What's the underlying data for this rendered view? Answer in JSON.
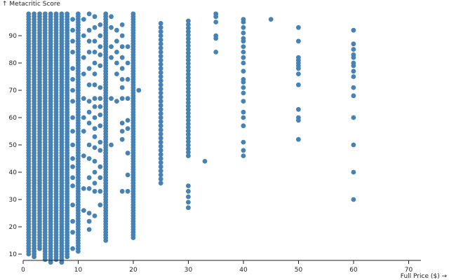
{
  "chart_data": {
    "type": "scatter",
    "title": "",
    "xlabel": "Full Price ($) →",
    "ylabel": "↑ Metacritic Score",
    "xlim": [
      0,
      77
    ],
    "ylim": [
      6,
      100
    ],
    "x_ticks": [
      "0",
      "10",
      "20",
      "30",
      "40",
      "50",
      "60",
      "70"
    ],
    "y_ticks": [
      "10",
      "20",
      "30",
      "40",
      "50",
      "60",
      "70",
      "80",
      "90"
    ],
    "point_color": "#4682b4",
    "grid": false,
    "columns": [
      {
        "x": 0.99,
        "from": 10,
        "to": 98,
        "step": 1
      },
      {
        "x": 1.99,
        "from": 9,
        "to": 98,
        "step": 1
      },
      {
        "x": 2.99,
        "from": 12,
        "to": 98,
        "step": 1
      },
      {
        "x": 3.99,
        "from": 8,
        "to": 98,
        "step": 1
      },
      {
        "x": 4.99,
        "from": 7,
        "to": 98,
        "step": 1
      },
      {
        "x": 5.99,
        "from": 8,
        "to": 98,
        "step": 1
      },
      {
        "x": 6.99,
        "from": 7,
        "to": 98,
        "step": 1
      },
      {
        "x": 7.99,
        "from": 9,
        "to": 98,
        "step": 1
      },
      {
        "x": 9.99,
        "from": 11,
        "to": 98,
        "step": 1
      },
      {
        "x": 14.99,
        "from": 15,
        "to": 98,
        "step": 1
      },
      {
        "x": 19.99,
        "from": 16,
        "to": 98,
        "step": 1
      },
      {
        "x": 24.99,
        "from": 36,
        "to": 95,
        "step": 1.5
      },
      {
        "x": 29.99,
        "from": 46,
        "to": 96,
        "step": 1.3
      }
    ],
    "points": [
      {
        "x": 8.99,
        "y": 12
      },
      {
        "x": 8.99,
        "y": 18
      },
      {
        "x": 8.99,
        "y": 22
      },
      {
        "x": 8.99,
        "y": 28
      },
      {
        "x": 8.99,
        "y": 35
      },
      {
        "x": 8.99,
        "y": 38
      },
      {
        "x": 8.99,
        "y": 42
      },
      {
        "x": 8.99,
        "y": 45
      },
      {
        "x": 8.99,
        "y": 50
      },
      {
        "x": 8.99,
        "y": 55
      },
      {
        "x": 8.99,
        "y": 60
      },
      {
        "x": 8.99,
        "y": 66
      },
      {
        "x": 8.99,
        "y": 70
      },
      {
        "x": 8.99,
        "y": 74
      },
      {
        "x": 8.99,
        "y": 78
      },
      {
        "x": 8.99,
        "y": 84
      },
      {
        "x": 8.99,
        "y": 88
      },
      {
        "x": 8.99,
        "y": 92
      },
      {
        "x": 8.99,
        "y": 96
      },
      {
        "x": 10.99,
        "y": 26
      },
      {
        "x": 10.99,
        "y": 34
      },
      {
        "x": 10.99,
        "y": 46
      },
      {
        "x": 10.99,
        "y": 55
      },
      {
        "x": 10.99,
        "y": 60
      },
      {
        "x": 10.99,
        "y": 67
      },
      {
        "x": 10.99,
        "y": 76
      },
      {
        "x": 10.99,
        "y": 82
      },
      {
        "x": 10.99,
        "y": 90
      },
      {
        "x": 10.99,
        "y": 96
      },
      {
        "x": 11.99,
        "y": 19
      },
      {
        "x": 11.99,
        "y": 22
      },
      {
        "x": 11.99,
        "y": 25
      },
      {
        "x": 11.99,
        "y": 34
      },
      {
        "x": 11.99,
        "y": 38
      },
      {
        "x": 11.99,
        "y": 45
      },
      {
        "x": 11.99,
        "y": 50
      },
      {
        "x": 11.99,
        "y": 58
      },
      {
        "x": 11.99,
        "y": 62
      },
      {
        "x": 11.99,
        "y": 66
      },
      {
        "x": 11.99,
        "y": 72
      },
      {
        "x": 11.99,
        "y": 78
      },
      {
        "x": 11.99,
        "y": 84
      },
      {
        "x": 11.99,
        "y": 88
      },
      {
        "x": 11.99,
        "y": 92
      },
      {
        "x": 11.99,
        "y": 98
      },
      {
        "x": 12.99,
        "y": 24
      },
      {
        "x": 12.99,
        "y": 33
      },
      {
        "x": 12.99,
        "y": 36
      },
      {
        "x": 12.99,
        "y": 40
      },
      {
        "x": 12.99,
        "y": 44
      },
      {
        "x": 12.99,
        "y": 49
      },
      {
        "x": 12.99,
        "y": 53
      },
      {
        "x": 12.99,
        "y": 56
      },
      {
        "x": 12.99,
        "y": 60
      },
      {
        "x": 12.99,
        "y": 64
      },
      {
        "x": 12.99,
        "y": 67
      },
      {
        "x": 12.99,
        "y": 72
      },
      {
        "x": 12.99,
        "y": 76
      },
      {
        "x": 12.99,
        "y": 80
      },
      {
        "x": 12.99,
        "y": 84
      },
      {
        "x": 12.99,
        "y": 88
      },
      {
        "x": 12.99,
        "y": 93
      },
      {
        "x": 12.99,
        "y": 97
      },
      {
        "x": 13.99,
        "y": 28
      },
      {
        "x": 13.99,
        "y": 33
      },
      {
        "x": 13.99,
        "y": 38
      },
      {
        "x": 13.99,
        "y": 42
      },
      {
        "x": 13.99,
        "y": 48
      },
      {
        "x": 13.99,
        "y": 51
      },
      {
        "x": 13.99,
        "y": 57
      },
      {
        "x": 13.99,
        "y": 61
      },
      {
        "x": 13.99,
        "y": 64
      },
      {
        "x": 13.99,
        "y": 67
      },
      {
        "x": 13.99,
        "y": 71
      },
      {
        "x": 13.99,
        "y": 79
      },
      {
        "x": 13.99,
        "y": 83
      },
      {
        "x": 13.99,
        "y": 86
      },
      {
        "x": 13.99,
        "y": 90
      },
      {
        "x": 13.99,
        "y": 94
      },
      {
        "x": 15.99,
        "y": 50
      },
      {
        "x": 15.99,
        "y": 67
      },
      {
        "x": 15.99,
        "y": 82
      },
      {
        "x": 15.99,
        "y": 86
      },
      {
        "x": 15.99,
        "y": 93
      },
      {
        "x": 15.99,
        "y": 97
      },
      {
        "x": 16.99,
        "y": 66
      },
      {
        "x": 16.99,
        "y": 76
      },
      {
        "x": 16.99,
        "y": 80
      },
      {
        "x": 16.99,
        "y": 84
      },
      {
        "x": 16.99,
        "y": 88
      },
      {
        "x": 16.99,
        "y": 92
      },
      {
        "x": 17.99,
        "y": 33
      },
      {
        "x": 17.99,
        "y": 52
      },
      {
        "x": 17.99,
        "y": 55
      },
      {
        "x": 17.99,
        "y": 58
      },
      {
        "x": 17.99,
        "y": 67
      },
      {
        "x": 17.99,
        "y": 71
      },
      {
        "x": 17.99,
        "y": 74
      },
      {
        "x": 17.99,
        "y": 78
      },
      {
        "x": 17.99,
        "y": 82
      },
      {
        "x": 17.99,
        "y": 86
      },
      {
        "x": 17.99,
        "y": 90
      },
      {
        "x": 17.99,
        "y": 94
      },
      {
        "x": 18.99,
        "y": 33
      },
      {
        "x": 18.99,
        "y": 39
      },
      {
        "x": 18.99,
        "y": 47
      },
      {
        "x": 18.99,
        "y": 56
      },
      {
        "x": 18.99,
        "y": 59
      },
      {
        "x": 18.99,
        "y": 67
      },
      {
        "x": 18.99,
        "y": 74
      },
      {
        "x": 18.99,
        "y": 80
      },
      {
        "x": 18.99,
        "y": 86
      },
      {
        "x": 20.99,
        "y": 70
      },
      {
        "x": 29.99,
        "y": 27
      },
      {
        "x": 29.99,
        "y": 29
      },
      {
        "x": 29.99,
        "y": 31
      },
      {
        "x": 29.99,
        "y": 33
      },
      {
        "x": 29.99,
        "y": 35
      },
      {
        "x": 32.99,
        "y": 44
      },
      {
        "x": 34.99,
        "y": 84
      },
      {
        "x": 34.99,
        "y": 89
      },
      {
        "x": 34.99,
        "y": 90
      },
      {
        "x": 34.99,
        "y": 95
      },
      {
        "x": 34.99,
        "y": 97
      },
      {
        "x": 34.99,
        "y": 98
      },
      {
        "x": 39.99,
        "y": 46
      },
      {
        "x": 39.99,
        "y": 48
      },
      {
        "x": 39.99,
        "y": 51
      },
      {
        "x": 39.99,
        "y": 57
      },
      {
        "x": 39.99,
        "y": 60
      },
      {
        "x": 39.99,
        "y": 62
      },
      {
        "x": 39.99,
        "y": 66
      },
      {
        "x": 39.99,
        "y": 69
      },
      {
        "x": 39.99,
        "y": 71
      },
      {
        "x": 39.99,
        "y": 73
      },
      {
        "x": 39.99,
        "y": 74
      },
      {
        "x": 39.99,
        "y": 77
      },
      {
        "x": 39.99,
        "y": 80
      },
      {
        "x": 39.99,
        "y": 82
      },
      {
        "x": 39.99,
        "y": 84
      },
      {
        "x": 39.99,
        "y": 86
      },
      {
        "x": 39.99,
        "y": 88
      },
      {
        "x": 39.99,
        "y": 89
      },
      {
        "x": 39.99,
        "y": 91
      },
      {
        "x": 39.99,
        "y": 93
      },
      {
        "x": 39.99,
        "y": 95
      },
      {
        "x": 39.99,
        "y": 96
      },
      {
        "x": 44.99,
        "y": 96
      },
      {
        "x": 49.99,
        "y": 52
      },
      {
        "x": 49.99,
        "y": 59
      },
      {
        "x": 49.99,
        "y": 60
      },
      {
        "x": 49.99,
        "y": 63
      },
      {
        "x": 49.99,
        "y": 72
      },
      {
        "x": 49.99,
        "y": 76
      },
      {
        "x": 49.99,
        "y": 78
      },
      {
        "x": 49.99,
        "y": 79
      },
      {
        "x": 49.99,
        "y": 80
      },
      {
        "x": 49.99,
        "y": 81
      },
      {
        "x": 49.99,
        "y": 82
      },
      {
        "x": 49.99,
        "y": 88
      },
      {
        "x": 49.99,
        "y": 93
      },
      {
        "x": 59.99,
        "y": 30
      },
      {
        "x": 59.99,
        "y": 40
      },
      {
        "x": 59.99,
        "y": 50
      },
      {
        "x": 59.99,
        "y": 60
      },
      {
        "x": 59.99,
        "y": 68
      },
      {
        "x": 59.99,
        "y": 71
      },
      {
        "x": 59.99,
        "y": 75
      },
      {
        "x": 59.99,
        "y": 77
      },
      {
        "x": 59.99,
        "y": 79
      },
      {
        "x": 59.99,
        "y": 80
      },
      {
        "x": 59.99,
        "y": 82
      },
      {
        "x": 59.99,
        "y": 83
      },
      {
        "x": 59.99,
        "y": 85
      },
      {
        "x": 59.99,
        "y": 87
      },
      {
        "x": 59.99,
        "y": 92
      }
    ]
  }
}
